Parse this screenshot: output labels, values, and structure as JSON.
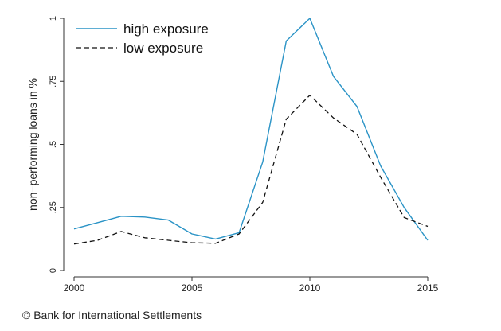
{
  "chart_data": {
    "type": "line",
    "ylabel": "non−performing loans in %",
    "xlim": [
      2000,
      2015
    ],
    "ylim": [
      0,
      1
    ],
    "x_ticks": [
      2000,
      2005,
      2010,
      2015
    ],
    "x_tick_labels": [
      "2000",
      "2005",
      "2010",
      "2015"
    ],
    "y_ticks": [
      0,
      0.25,
      0.5,
      0.75,
      1
    ],
    "y_tick_labels": [
      "0",
      ".25",
      ".5",
      ".75",
      "1"
    ],
    "grid": false,
    "legend_position": "top-left",
    "x": [
      2000,
      2001,
      2002,
      2003,
      2004,
      2005,
      2006,
      2007,
      2008,
      2009,
      2010,
      2011,
      2012,
      2013,
      2014,
      2015
    ],
    "series": [
      {
        "name": "high exposure",
        "style": "solid",
        "color": "#2a93c6",
        "values": [
          0.165,
          0.19,
          0.215,
          0.212,
          0.2,
          0.145,
          0.125,
          0.15,
          0.43,
          0.91,
          1.0,
          0.77,
          0.65,
          0.415,
          0.25,
          0.12
        ]
      },
      {
        "name": "low exposure",
        "style": "dashed",
        "color": "#111111",
        "values": [
          0.105,
          0.12,
          0.155,
          0.13,
          0.12,
          0.11,
          0.108,
          0.145,
          0.27,
          0.6,
          0.695,
          0.605,
          0.54,
          0.37,
          0.21,
          0.175
        ]
      }
    ]
  },
  "footer": {
    "credit": "© Bank for International Settlements"
  }
}
